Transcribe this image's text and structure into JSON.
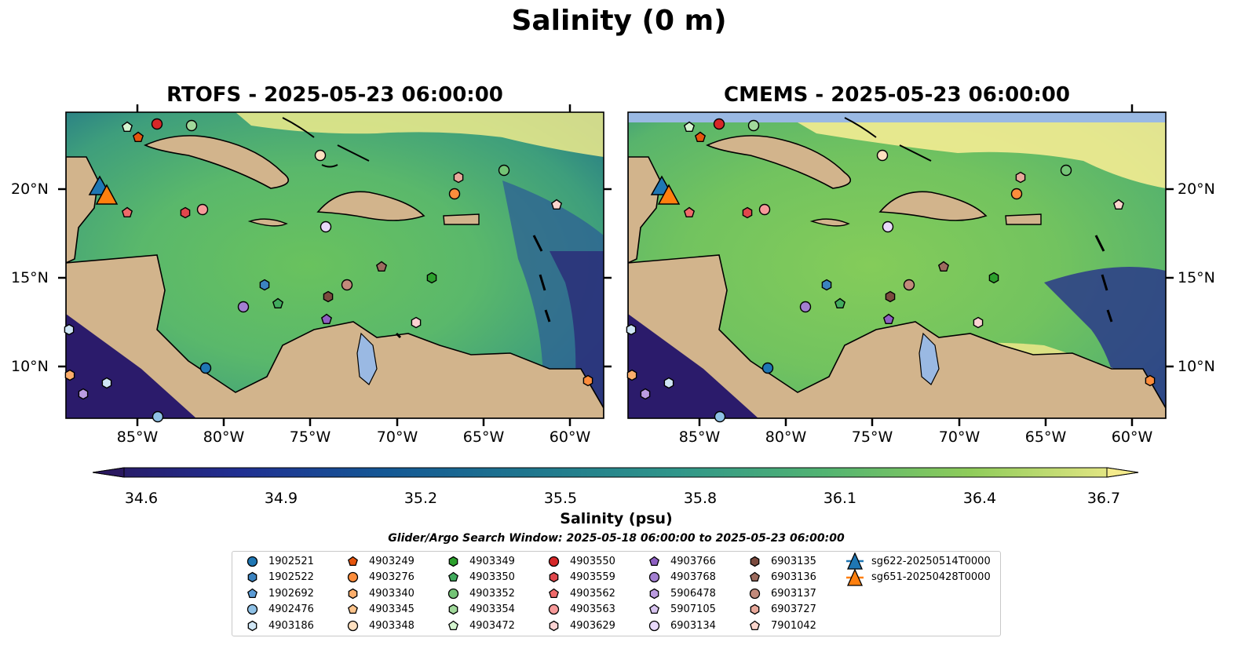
{
  "suptitle": "Salinity (0 m)",
  "panels": [
    {
      "title": "RTOFS - 2025-05-23 06:00:00"
    },
    {
      "title": "CMEMS - 2025-05-23 06:00:00"
    }
  ],
  "lat_labels": [
    "20°N",
    "15°N",
    "10°N"
  ],
  "lon_labels": [
    "85°W",
    "80°W",
    "75°W",
    "70°W",
    "65°W",
    "60°W"
  ],
  "colorbar": {
    "label": "Salinity (psu)",
    "ticks": [
      "34.6",
      "34.9",
      "35.2",
      "35.5",
      "35.8",
      "36.1",
      "36.4",
      "36.7"
    ],
    "range": [
      34.6,
      36.7
    ],
    "colormap": "haline"
  },
  "search_window": "Glider/Argo Search Window: 2025-05-18 06:00:00 to 2025-05-23 06:00:00",
  "colors": {
    "land": "#d2b48c",
    "water_fill": "#9ab9e3",
    "glider_blue": "#1f77b4",
    "glider_orange": "#ff7f0e"
  },
  "legend": [
    {
      "label": "1902521",
      "marker": "circle",
      "color": "#1f77b4"
    },
    {
      "label": "1902522",
      "marker": "hexagon",
      "color": "#3b83c0"
    },
    {
      "label": "1902692",
      "marker": "pentagon",
      "color": "#5b9bd5"
    },
    {
      "label": "4902476",
      "marker": "circle",
      "color": "#8fc1e6"
    },
    {
      "label": "4903186",
      "marker": "hexagon",
      "color": "#cfe6f5"
    },
    {
      "label": "4903249",
      "marker": "pentagon",
      "color": "#e6550d"
    },
    {
      "label": "4903276",
      "marker": "circle",
      "color": "#fd8d3c"
    },
    {
      "label": "4903340",
      "marker": "hexagon",
      "color": "#fdae6b"
    },
    {
      "label": "4903345",
      "marker": "pentagon",
      "color": "#fdc48c"
    },
    {
      "label": "4903348",
      "marker": "circle",
      "color": "#fee0c0"
    },
    {
      "label": "4903349",
      "marker": "hexagon",
      "color": "#2ca02c"
    },
    {
      "label": "4903350",
      "marker": "pentagon",
      "color": "#41ab5d"
    },
    {
      "label": "4903352",
      "marker": "circle",
      "color": "#74c476"
    },
    {
      "label": "4903354",
      "marker": "hexagon",
      "color": "#a1d99b"
    },
    {
      "label": "4903472",
      "marker": "pentagon",
      "color": "#d4f5cf"
    },
    {
      "label": "4903550",
      "marker": "circle",
      "color": "#d62728"
    },
    {
      "label": "4903559",
      "marker": "hexagon",
      "color": "#e0474c"
    },
    {
      "label": "4903562",
      "marker": "pentagon",
      "color": "#ef6a6a"
    },
    {
      "label": "4903563",
      "marker": "circle",
      "color": "#f79a9a"
    },
    {
      "label": "4903629",
      "marker": "hexagon",
      "color": "#fcd2d2"
    },
    {
      "label": "4903766",
      "marker": "pentagon",
      "color": "#8e5fc2"
    },
    {
      "label": "4903768",
      "marker": "circle",
      "color": "#a37fd1"
    },
    {
      "label": "5906478",
      "marker": "hexagon",
      "color": "#bb9be0"
    },
    {
      "label": "5907105",
      "marker": "pentagon",
      "color": "#d8c4f0"
    },
    {
      "label": "6903134",
      "marker": "circle",
      "color": "#e8d9fa"
    },
    {
      "label": "6903135",
      "marker": "hexagon",
      "color": "#7b4a3e"
    },
    {
      "label": "6903136",
      "marker": "pentagon",
      "color": "#9c6b5e"
    },
    {
      "label": "6903137",
      "marker": "circle",
      "color": "#c28a7b"
    },
    {
      "label": "6903727",
      "marker": "hexagon",
      "color": "#e8a89a"
    },
    {
      "label": "7901042",
      "marker": "pentagon",
      "color": "#fbd5cc"
    },
    {
      "label": "sg622-20250514T0000",
      "marker": "triangle",
      "color": "#1f77b4"
    },
    {
      "label": "sg651-20250428T0000",
      "marker": "triangle",
      "color": "#ff7f0e"
    }
  ]
}
